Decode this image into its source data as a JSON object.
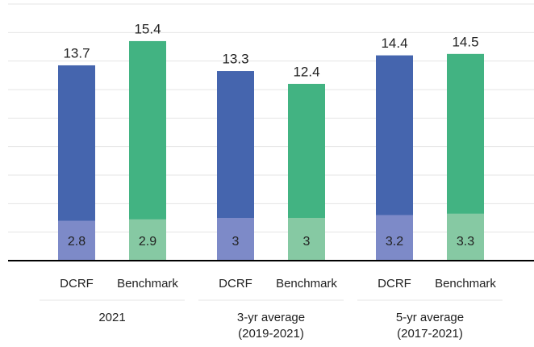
{
  "chart_data": {
    "type": "overlay-bar",
    "categories": [
      "DCRF",
      "Benchmark",
      "DCRF",
      "Benchmark",
      "DCRF",
      "Benchmark"
    ],
    "groups": [
      [
        "2021"
      ],
      [
        "3-yr average",
        "(2019-2021)"
      ],
      [
        "5-yr average",
        "(2017-2021)"
      ]
    ],
    "series": [
      {
        "values": [
          13.7,
          15.4,
          13.3,
          12.4,
          14.4,
          14.5
        ],
        "colors": [
          "#4565ae",
          "#42b382"
        ]
      },
      {
        "values": [
          2.8,
          2.9,
          3.0,
          3.0,
          3.2,
          3.3
        ],
        "colors": [
          "#7d8ac8",
          "#86c9a3"
        ]
      }
    ],
    "ylim": [
      0,
      18
    ],
    "yticks": [
      0,
      2,
      4,
      6,
      8,
      10,
      12,
      14,
      16,
      18
    ],
    "grid": true
  }
}
